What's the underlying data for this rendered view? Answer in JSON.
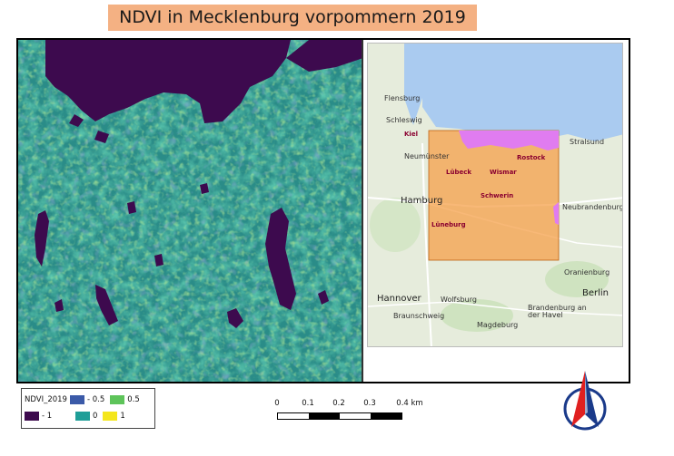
{
  "title": "NDVI in Mecklenburg vorpommern 2019",
  "legend": {
    "layer_name": "NDVI_2019",
    "items": [
      {
        "label": "- 1",
        "color": "#3d0a4e"
      },
      {
        "label": "- 0.5",
        "color": "#3b5aa8"
      },
      {
        "label": "0",
        "color": "#1f9e98"
      },
      {
        "label": "0.5",
        "color": "#5ec45a"
      },
      {
        "label": "1",
        "color": "#f4e61c"
      }
    ]
  },
  "scalebar": {
    "ticks": [
      "0",
      "0.1",
      "0.2",
      "0.3",
      "0.4 km"
    ]
  },
  "locator": {
    "cities": [
      {
        "name": "Kiel",
        "style": "red"
      },
      {
        "name": "Neumünster",
        "style": "normal"
      },
      {
        "name": "Lübeck",
        "style": "red"
      },
      {
        "name": "Wismar",
        "style": "red"
      },
      {
        "name": "Rostock",
        "style": "red"
      },
      {
        "name": "Schwerin",
        "style": "red"
      },
      {
        "name": "Hamburg",
        "style": "big"
      },
      {
        "name": "Lüneburg",
        "style": "red"
      },
      {
        "name": "Hannover",
        "style": "big"
      },
      {
        "name": "Wolfsburg",
        "style": "normal"
      },
      {
        "name": "Braunschweig",
        "style": "normal"
      },
      {
        "name": "Magdeburg",
        "style": "normal"
      },
      {
        "name": "Berlin",
        "style": "big"
      },
      {
        "name": "Oranienburg",
        "style": "normal"
      },
      {
        "name": "Stralsund",
        "style": "normal"
      },
      {
        "name": "Neubrandenburg",
        "style": "normal"
      },
      {
        "name": "Flensburg",
        "style": "normal"
      },
      {
        "name": "Schleswig",
        "style": "normal"
      },
      {
        "name": "Brandenburg an der Havel",
        "style": "normal"
      }
    ]
  },
  "colors": {
    "title_bg": "#f4b183",
    "study_area_fill": "#f5a04a",
    "sea_in_study_area": "#e07cf0"
  }
}
